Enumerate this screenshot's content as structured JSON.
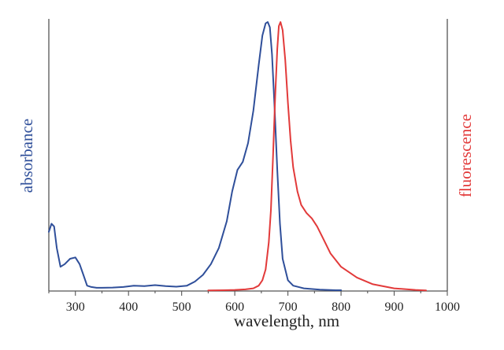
{
  "chart_data": {
    "type": "line",
    "title": "",
    "xlabel": "wavelength, nm",
    "y_left_label": "absorbance",
    "y_right_label": "fluorescence",
    "xlim": [
      250,
      1000
    ],
    "ylim": [
      0,
      1
    ],
    "grid": false,
    "x_ticks": [
      300,
      400,
      500,
      600,
      700,
      800,
      900,
      1000
    ],
    "x_tick_labels": [
      "300",
      "400",
      "500",
      "600",
      "700",
      "800",
      "900",
      "1000"
    ],
    "colors": {
      "absorbance": "#2f4f9a",
      "fluorescence": "#e23a3a",
      "axis": "#555555",
      "text": "#222222"
    },
    "series": [
      {
        "color": "#2f4f9a",
        "x": [
          250,
          255,
          260,
          265,
          272,
          280,
          290,
          300,
          308,
          315,
          322,
          330,
          340,
          350,
          370,
          390,
          410,
          430,
          450,
          470,
          490,
          510,
          525,
          540,
          555,
          570,
          585,
          595,
          605,
          615,
          625,
          635,
          645,
          652,
          658,
          662,
          666,
          670,
          675,
          680,
          685,
          690,
          700,
          710,
          730,
          760,
          790,
          800
        ],
        "values": [
          0.22,
          0.25,
          0.24,
          0.16,
          0.09,
          0.1,
          0.12,
          0.125,
          0.1,
          0.06,
          0.02,
          0.015,
          0.012,
          0.012,
          0.013,
          0.015,
          0.02,
          0.018,
          0.022,
          0.018,
          0.016,
          0.02,
          0.035,
          0.06,
          0.1,
          0.16,
          0.26,
          0.37,
          0.45,
          0.48,
          0.55,
          0.67,
          0.84,
          0.95,
          0.995,
          1.0,
          0.98,
          0.88,
          0.68,
          0.45,
          0.25,
          0.12,
          0.04,
          0.02,
          0.01,
          0.005,
          0.003,
          0.003
        ]
      },
      {
        "color": "#e23a3a",
        "x": [
          550,
          580,
          600,
          620,
          635,
          645,
          652,
          658,
          664,
          668,
          672,
          676,
          680,
          683,
          686,
          690,
          695,
          700,
          705,
          710,
          718,
          725,
          735,
          745,
          755,
          765,
          780,
          800,
          830,
          860,
          900,
          940,
          960
        ],
        "values": [
          0.002,
          0.003,
          0.004,
          0.006,
          0.01,
          0.02,
          0.04,
          0.08,
          0.18,
          0.3,
          0.5,
          0.72,
          0.9,
          0.985,
          1.0,
          0.97,
          0.86,
          0.7,
          0.56,
          0.46,
          0.37,
          0.32,
          0.29,
          0.27,
          0.24,
          0.2,
          0.14,
          0.09,
          0.05,
          0.025,
          0.01,
          0.004,
          0.002
        ]
      }
    ]
  }
}
